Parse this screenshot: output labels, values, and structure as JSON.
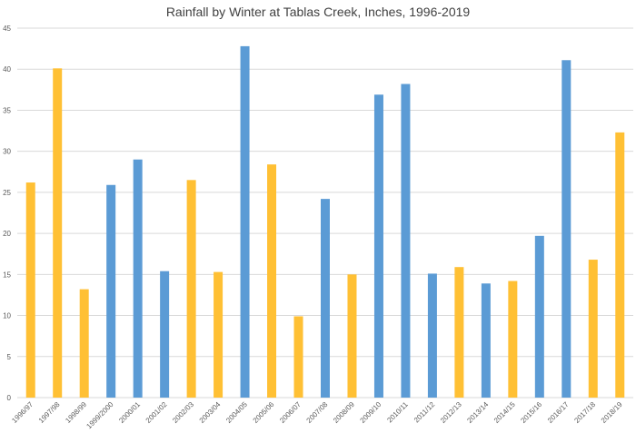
{
  "chart_data": {
    "type": "bar",
    "title": "Rainfall by Winter at Tablas Creek, Inches, 1996-2019",
    "xlabel": "",
    "ylabel": "",
    "ylim": [
      0,
      45
    ],
    "yticks": [
      0,
      5,
      10,
      15,
      20,
      25,
      30,
      35,
      40,
      45
    ],
    "grid": true,
    "legend": "none",
    "colors": {
      "below_average": "#ffc034",
      "above_average": "#5b9bd5"
    },
    "categories": [
      "1996/97",
      "1997/98",
      "1998/99",
      "1999/2000",
      "2000/01",
      "2001/02",
      "2002/03",
      "2003/04",
      "2004/05",
      "2005/06",
      "2006/07",
      "2007/08",
      "2008/09",
      "2009/10",
      "2010/11",
      "2011/12",
      "2012/13",
      "2013/14",
      "2014/15",
      "2015/16",
      "2016/17",
      "2017/18",
      "2018/19"
    ],
    "values": [
      26.2,
      40.1,
      13.2,
      25.9,
      29.0,
      15.4,
      26.5,
      15.3,
      42.8,
      28.4,
      9.9,
      24.2,
      15.0,
      36.9,
      38.2,
      15.1,
      15.9,
      13.9,
      14.2,
      19.7,
      41.1,
      16.8,
      32.3
    ],
    "bar_colors": [
      "#ffc034",
      "#ffc034",
      "#ffc034",
      "#5b9bd5",
      "#5b9bd5",
      "#5b9bd5",
      "#ffc034",
      "#ffc034",
      "#5b9bd5",
      "#ffc034",
      "#ffc034",
      "#5b9bd5",
      "#ffc034",
      "#5b9bd5",
      "#5b9bd5",
      "#5b9bd5",
      "#ffc034",
      "#5b9bd5",
      "#ffc034",
      "#5b9bd5",
      "#5b9bd5",
      "#ffc034",
      "#ffc034"
    ]
  }
}
